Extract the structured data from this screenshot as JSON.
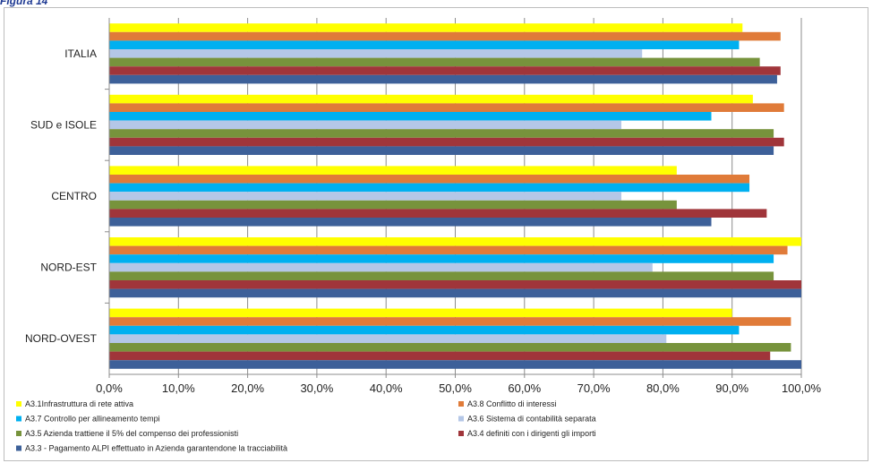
{
  "figure_label": "Figura 14",
  "chart_data": {
    "type": "bar",
    "orientation": "horizontal",
    "categories": [
      "ITALIA",
      "SUD e ISOLE",
      "CENTRO",
      "NORD-EST",
      "NORD-OVEST"
    ],
    "series": [
      {
        "name": "A3.1 Infrastruttura di rete attiva",
        "color": "#ffff00",
        "values": [
          91.5,
          93.0,
          82.0,
          100.0,
          90.0
        ]
      },
      {
        "name": "A3.8 Conflitto di interessi",
        "color": "#e07b39",
        "values": [
          97.0,
          97.5,
          92.5,
          98.0,
          98.5
        ]
      },
      {
        "name": "A3.7 Controllo per allineamento tempi",
        "color": "#00b0f0",
        "values": [
          91.0,
          87.0,
          92.5,
          96.0,
          91.0
        ]
      },
      {
        "name": "A3.6 Sistema di contabilità separata",
        "color": "#b4c7e7",
        "values": [
          77.0,
          74.0,
          74.0,
          78.5,
          80.5
        ]
      },
      {
        "name": "A3.5 Azienda trattiene il 5% del compenso dei professionisti",
        "color": "#77933c",
        "values": [
          94.0,
          96.0,
          82.0,
          96.0,
          98.5
        ]
      },
      {
        "name": "A3.4 definiti con i dirigenti gli importi",
        "color": "#a0353a",
        "values": [
          97.0,
          97.5,
          95.0,
          100.0,
          95.5
        ]
      },
      {
        "name": "A3.3 - Pagamento ALPI effettuato in Azienda garantendone la tracciabilità",
        "color": "#3d6099",
        "values": [
          96.5,
          96.0,
          87.0,
          100.0,
          100.0
        ]
      }
    ],
    "xlim": [
      0,
      100
    ],
    "xticks": [
      "0,0%",
      "10,0%",
      "20,0%",
      "30,0%",
      "40,0%",
      "50,0%",
      "60,0%",
      "70,0%",
      "80,0%",
      "90,0%",
      "100,0%"
    ],
    "grid": true,
    "legend_position": "bottom",
    "legend_items": [
      {
        "label": "A3.1Infrastruttura di rete attiva",
        "color": "#ffff00"
      },
      {
        "label": "A3.8 Conflitto di interessi",
        "color": "#e07b39"
      },
      {
        "label": "A3.7 Controllo per allineamento tempi",
        "color": "#00b0f0"
      },
      {
        "label": "A3.6 Sistema di contabilità separata",
        "color": "#b4c7e7"
      },
      {
        "label": "A3.5 Azienda trattiene il 5% del compenso dei professionisti",
        "color": "#77933c"
      },
      {
        "label": "A3.4 definiti con i dirigenti gli importi",
        "color": "#a0353a"
      },
      {
        "label": "A3.3 - Pagamento ALPI effettuato in Azienda garantendone la tracciabilità",
        "color": "#3d6099"
      }
    ]
  }
}
